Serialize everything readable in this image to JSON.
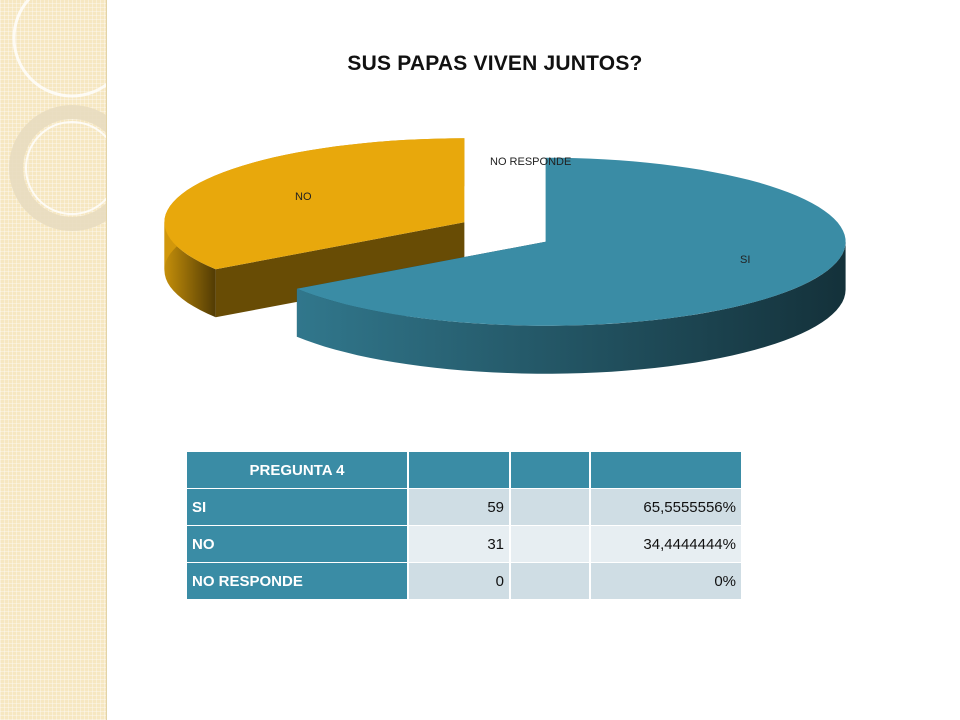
{
  "chart_data": {
    "type": "pie",
    "title": "SUS PAPAS VIVEN JUNTOS?",
    "categories": [
      "SI",
      "NO",
      "NO RESPONDE"
    ],
    "values": [
      59,
      31,
      0
    ],
    "colors": [
      "#3a8ca5",
      "#e8a80c",
      "#ffffff"
    ],
    "style": "3d-exploded"
  },
  "table": {
    "header": [
      "PREGUNTA 4",
      "",
      "",
      ""
    ],
    "rows": [
      {
        "label": "SI",
        "count": "59",
        "percent": "65,5555556%"
      },
      {
        "label": "NO",
        "count": "31",
        "percent": "34,4444444%"
      },
      {
        "label": "NO RESPONDE",
        "count": "0",
        "percent": "0%"
      }
    ]
  }
}
